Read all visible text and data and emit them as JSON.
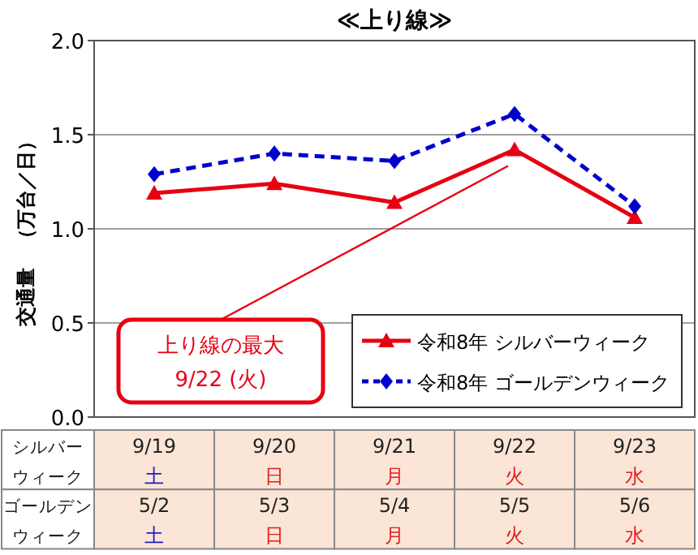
{
  "chart_data": {
    "type": "line",
    "title": "≪上り線≫",
    "ylabel": "交通量　（万台／日）",
    "categories": [
      "9/19\n土\n5/2\n土",
      "9/20\n日\n5/3\n日",
      "9/21\n月\n5/4\n月",
      "9/22\n火\n5/5\n火",
      "9/23\n水\n5/6\n水"
    ],
    "series": [
      {
        "name": "令和8年 シルバーウィーク",
        "color": "#e60012",
        "values": [
          1.19,
          1.24,
          1.14,
          1.42,
          1.06
        ],
        "marker": "triangle",
        "line_style": "solid"
      },
      {
        "name": "令和8年 ゴールデンウィーク",
        "color": "#0000cc",
        "values": [
          1.29,
          1.4,
          1.36,
          1.61,
          1.12
        ],
        "marker": "diamond",
        "line_style": "dashed"
      }
    ],
    "ylim": [
      0,
      2.0
    ],
    "yticks": [
      {
        "value": 0,
        "label": "0.0"
      },
      {
        "value": 0.5,
        "label": "0.5"
      },
      {
        "value": 1.0,
        "label": "1.0"
      },
      {
        "value": 1.5,
        "label": "1.5"
      },
      {
        "value": 2.0,
        "label": "2.0"
      }
    ],
    "grid": "y",
    "legend": "bottom right",
    "annotations": [
      "上り線の最大\n9/22 (火)",
      "シルバー",
      "ウィーク",
      "ゴールデン",
      "ウィーク"
    ]
  }
}
